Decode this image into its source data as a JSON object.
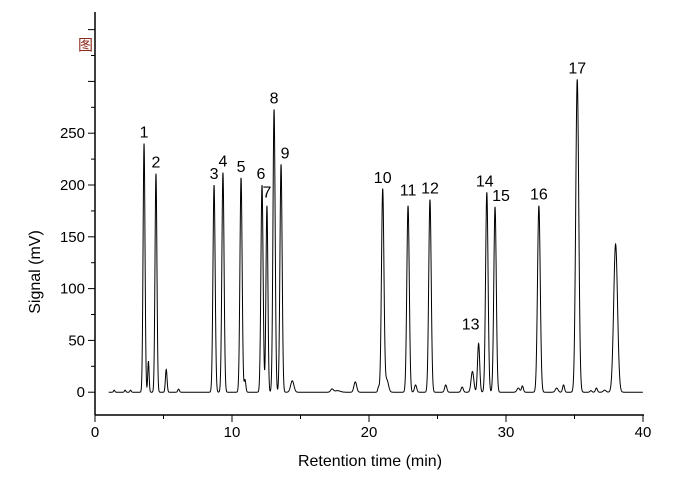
{
  "figure_mark": "图",
  "chart_data": {
    "type": "line",
    "title": "",
    "xlabel": "Retention time (min)",
    "ylabel": "Signal (mV)",
    "xlim": [
      0,
      40
    ],
    "ylim": [
      -22,
      367
    ],
    "xticks": [
      0,
      10,
      20,
      30,
      40
    ],
    "yticks": [
      0,
      50,
      100,
      150,
      200,
      250
    ],
    "grid": false,
    "legend": "none",
    "peaks": [
      {
        "label": "1",
        "t": 3.58,
        "h": 240,
        "w": 0.07
      },
      {
        "label": "2",
        "t": 4.45,
        "h": 211,
        "w": 0.07
      },
      {
        "label": "3",
        "t": 8.69,
        "h": 200,
        "w": 0.08
      },
      {
        "label": "4",
        "t": 9.34,
        "h": 212,
        "w": 0.08
      },
      {
        "label": "5",
        "t": 10.66,
        "h": 207,
        "w": 0.08
      },
      {
        "label": "6",
        "t": 12.19,
        "h": 200,
        "w": 0.08
      },
      {
        "label": "7",
        "t": 12.55,
        "h": 180,
        "w": 0.07
      },
      {
        "label": "8",
        "t": 13.07,
        "h": 273,
        "w": 0.08
      },
      {
        "label": "9",
        "t": 13.58,
        "h": 220,
        "w": 0.08
      },
      {
        "label": "10",
        "t": 21.0,
        "h": 196,
        "w": 0.09
      },
      {
        "label": "11",
        "t": 22.85,
        "h": 180,
        "w": 0.09
      },
      {
        "label": "12",
        "t": 24.45,
        "h": 186,
        "w": 0.09
      },
      {
        "label": "13",
        "t": 28.0,
        "h": 47,
        "w": 0.08
      },
      {
        "label": "14",
        "t": 28.6,
        "h": 193,
        "w": 0.09
      },
      {
        "label": "15",
        "t": 29.2,
        "h": 179,
        "w": 0.09
      },
      {
        "label": "16",
        "t": 32.4,
        "h": 180,
        "w": 0.1
      },
      {
        "label": "17",
        "t": 35.2,
        "h": 302,
        "w": 0.11
      },
      {
        "label": "",
        "t": 38.0,
        "h": 143,
        "w": 0.14
      }
    ],
    "minor_peaks": [
      {
        "t": 1.4,
        "h": 2,
        "w": 0.05
      },
      {
        "t": 2.2,
        "h": 2,
        "w": 0.05
      },
      {
        "t": 2.6,
        "h": 2,
        "w": 0.05
      },
      {
        "t": 3.9,
        "h": 30,
        "w": 0.05
      },
      {
        "t": 5.2,
        "h": 22,
        "w": 0.06
      },
      {
        "t": 6.1,
        "h": 3,
        "w": 0.06
      },
      {
        "t": 10.95,
        "h": 12,
        "w": 0.06
      },
      {
        "t": 14.4,
        "h": 11,
        "w": 0.12
      },
      {
        "t": 17.3,
        "h": 3,
        "w": 0.1
      },
      {
        "t": 17.7,
        "h": 1.5,
        "w": 0.2
      },
      {
        "t": 19.0,
        "h": 10,
        "w": 0.1
      },
      {
        "t": 20.7,
        "h": 5,
        "w": 0.06
      },
      {
        "t": 21.3,
        "h": 12,
        "w": 0.12
      },
      {
        "t": 23.4,
        "h": 7,
        "w": 0.08
      },
      {
        "t": 25.6,
        "h": 7,
        "w": 0.08
      },
      {
        "t": 26.8,
        "h": 5,
        "w": 0.08
      },
      {
        "t": 27.55,
        "h": 20,
        "w": 0.1
      },
      {
        "t": 30.9,
        "h": 4,
        "w": 0.1
      },
      {
        "t": 31.2,
        "h": 6,
        "w": 0.07
      },
      {
        "t": 33.7,
        "h": 4,
        "w": 0.1
      },
      {
        "t": 34.2,
        "h": 7,
        "w": 0.07
      },
      {
        "t": 36.2,
        "h": 1.5,
        "w": 0.07
      },
      {
        "t": 36.6,
        "h": 4,
        "w": 0.07
      },
      {
        "t": 37.2,
        "h": 2,
        "w": 0.1
      }
    ]
  }
}
